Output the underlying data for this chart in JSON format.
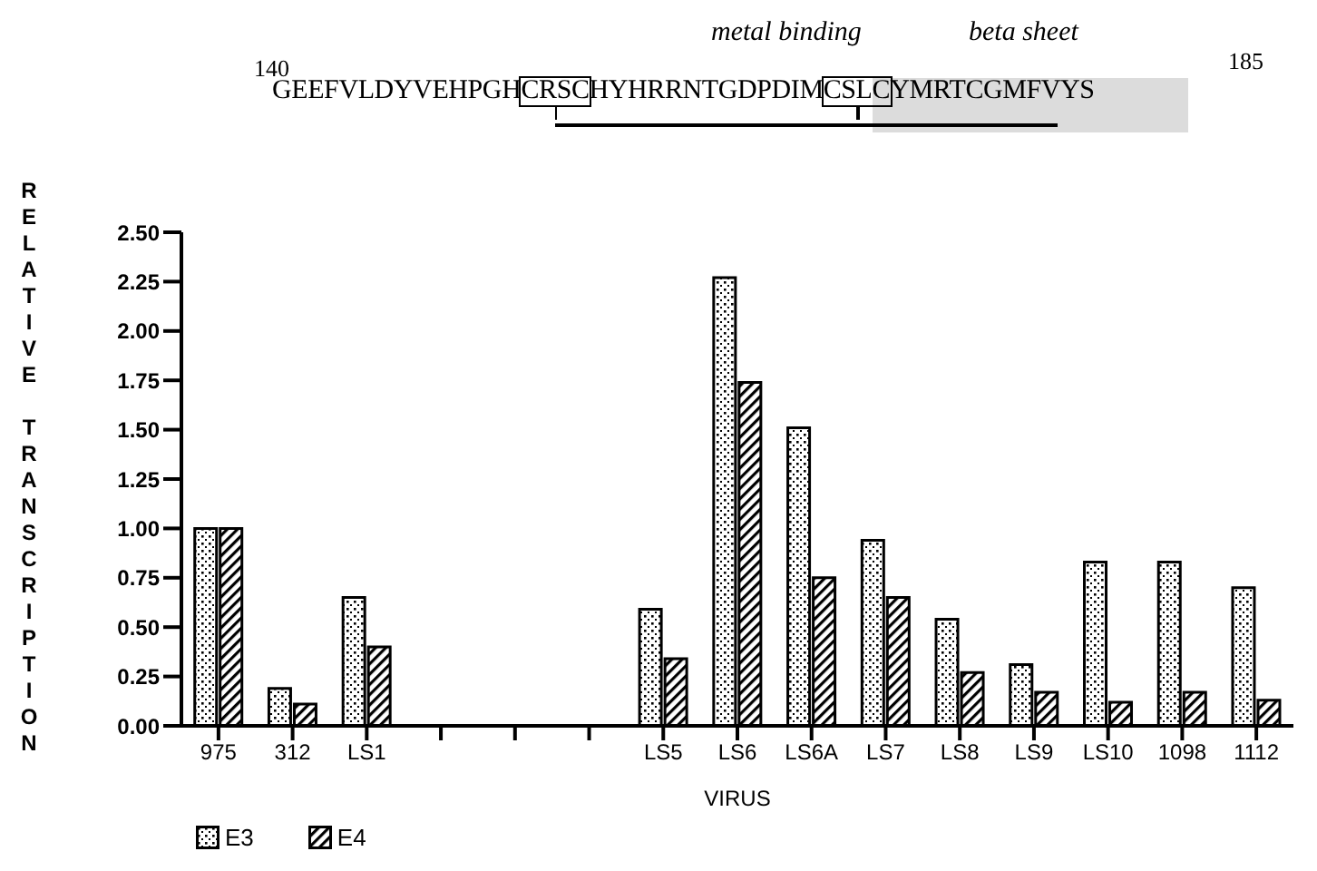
{
  "chart_data": {
    "type": "bar",
    "xlabel": "VIRUS",
    "ylabel": "RELATIVE TRANSCRIPTION",
    "annotations": [
      "metal binding",
      "beta sheet",
      "140",
      "185",
      "GEEFVLDYVEHPGHCRSCHYHRRNTGDPDIMCSLCYMRTCGMFVYS"
    ],
    "categories": [
      "975",
      "312",
      "LS1",
      null,
      null,
      null,
      "LS5",
      "LS6",
      "LS6A",
      "LS7",
      "LS8",
      "LS9",
      "LS10",
      "1098",
      "1112"
    ],
    "series": [
      {
        "name": "E3",
        "color": "#000000",
        "values": [
          1.0,
          0.19,
          0.65,
          0,
          0,
          0,
          0.59,
          2.27,
          1.51,
          0.94,
          0.54,
          0.31,
          0.83,
          0.83,
          0.7
        ]
      },
      {
        "name": "E4",
        "color": "#000000",
        "values": [
          1.0,
          0.11,
          0.4,
          0,
          0,
          0,
          0.34,
          1.74,
          0.75,
          0.65,
          0.27,
          0.17,
          0.12,
          0.17,
          0.13
        ]
      }
    ],
    "ylim": [
      0,
      2.5
    ],
    "yticks": [
      {
        "value": 0,
        "label": "0.00"
      },
      0.25,
      {
        "value": 0.5,
        "label": "0.50"
      },
      0.75,
      {
        "value": 1,
        "label": "1.00"
      },
      1.25,
      {
        "value": 1.5,
        "label": "1.50"
      },
      1.75,
      {
        "value": 2,
        "label": "2.00"
      },
      2.25,
      {
        "value": 2.5,
        "label": "2.50"
      }
    ],
    "legend": "bottom left"
  }
}
